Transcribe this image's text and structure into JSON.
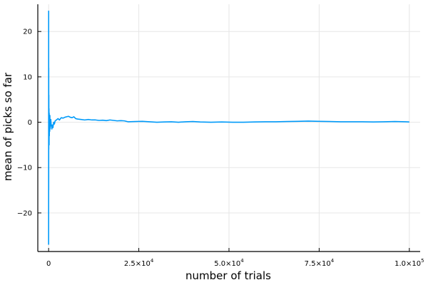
{
  "chart_data": {
    "type": "line",
    "title": "",
    "xlabel": "number of trials",
    "ylabel": "mean of picks so far",
    "xlim": [
      -3000,
      103000
    ],
    "ylim": [
      -28.5,
      26
    ],
    "grid": true,
    "legend": "none",
    "line_color": "#009af9",
    "x_ticks": [
      {
        "value": 0,
        "label": "0",
        "exp": ""
      },
      {
        "value": 25000,
        "label": "2.5×10",
        "exp": "4"
      },
      {
        "value": 50000,
        "label": "5.0×10",
        "exp": "4"
      },
      {
        "value": 75000,
        "label": "7.5×10",
        "exp": "4"
      },
      {
        "value": 100000,
        "label": "1.0×10",
        "exp": "5"
      }
    ],
    "y_ticks": [
      {
        "value": 20,
        "label": "20"
      },
      {
        "value": 10,
        "label": "10"
      },
      {
        "value": 0,
        "label": "0"
      },
      {
        "value": -10,
        "label": "−10"
      },
      {
        "value": -20,
        "label": "−20"
      }
    ],
    "series": [
      {
        "x": [
          1,
          10,
          20,
          30,
          40,
          60,
          80,
          100,
          130,
          160,
          200,
          250,
          300,
          350,
          400,
          450,
          500,
          600,
          700,
          800,
          900,
          1000,
          1200,
          1400,
          1600,
          1800,
          2000,
          2300,
          2600,
          3000,
          3500,
          4000,
          4500,
          5000,
          5500,
          6000,
          6500,
          7000,
          7500,
          8000,
          9000,
          10000,
          11000,
          12000,
          13000,
          14000,
          15000,
          16000,
          17000,
          18000,
          19000,
          20000,
          21000,
          22000,
          24000,
          26000,
          28000,
          30000,
          32000,
          34000,
          36000,
          38000,
          40000,
          42000,
          45000,
          48000,
          51000,
          54000,
          57000,
          60000,
          63000,
          66000,
          69000,
          72000,
          75000,
          78000,
          81000,
          84000,
          87000,
          90000,
          93000,
          96000,
          99000,
          100000
        ],
        "y": [
          -27,
          24.5,
          -15,
          12,
          -6,
          6,
          -4,
          3,
          -5,
          2,
          -3,
          1,
          -2,
          1.5,
          -1.5,
          0.5,
          -0.8,
          0.6,
          -0.5,
          -1,
          -1.5,
          -0.6,
          -1.2,
          0,
          -0.4,
          0.3,
          0.4,
          0.6,
          0.8,
          0.5,
          1.0,
          0.9,
          1.1,
          1.2,
          1.3,
          1.1,
          1.0,
          1.2,
          0.8,
          0.7,
          0.6,
          0.5,
          0.6,
          0.5,
          0.5,
          0.4,
          0.45,
          0.35,
          0.5,
          0.4,
          0.3,
          0.35,
          0.3,
          0.1,
          0.15,
          0.2,
          0.1,
          0.0,
          0.05,
          0.1,
          0.0,
          0.1,
          0.15,
          0.05,
          0.0,
          0.05,
          0.0,
          0.0,
          0.05,
          0.1,
          0.1,
          0.15,
          0.2,
          0.25,
          0.2,
          0.15,
          0.1,
          0.1,
          0.1,
          0.05,
          0.1,
          0.15,
          0.1,
          0.05
        ]
      }
    ]
  }
}
